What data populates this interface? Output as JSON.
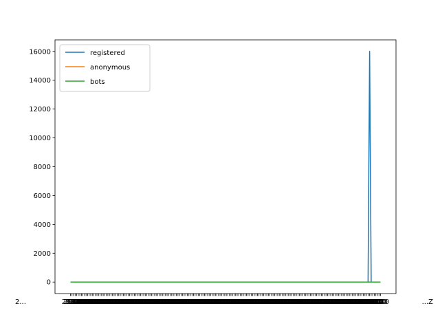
{
  "chart_data": {
    "type": "line",
    "title": "",
    "xlabel": "",
    "ylabel": "",
    "ylim": [
      -800,
      16800
    ],
    "yticks": [
      0,
      2000,
      4000,
      6000,
      8000,
      10000,
      12000,
      14000,
      16000
    ],
    "ytick_labels": [
      "0",
      "2000",
      "4000",
      "6000",
      "8000",
      "10000",
      "12000",
      "14000",
      "16000"
    ],
    "n_points": 200,
    "x_label_sample": "2...",
    "x_label_sample_end": "...Z",
    "legend_placement": "upper-left",
    "grid": false,
    "series": [
      {
        "name": "registered",
        "color": "#1f77b4",
        "baseline": 0,
        "spikes": [
          {
            "index": 191,
            "value": 0
          },
          {
            "index": 192,
            "value": 16000
          },
          {
            "index": 193,
            "value": 0
          }
        ]
      },
      {
        "name": "anonymous",
        "color": "#ff7f0e",
        "baseline": 0,
        "spikes": []
      },
      {
        "name": "bots",
        "color": "#2ca02c",
        "baseline": 0,
        "spikes": []
      }
    ]
  }
}
